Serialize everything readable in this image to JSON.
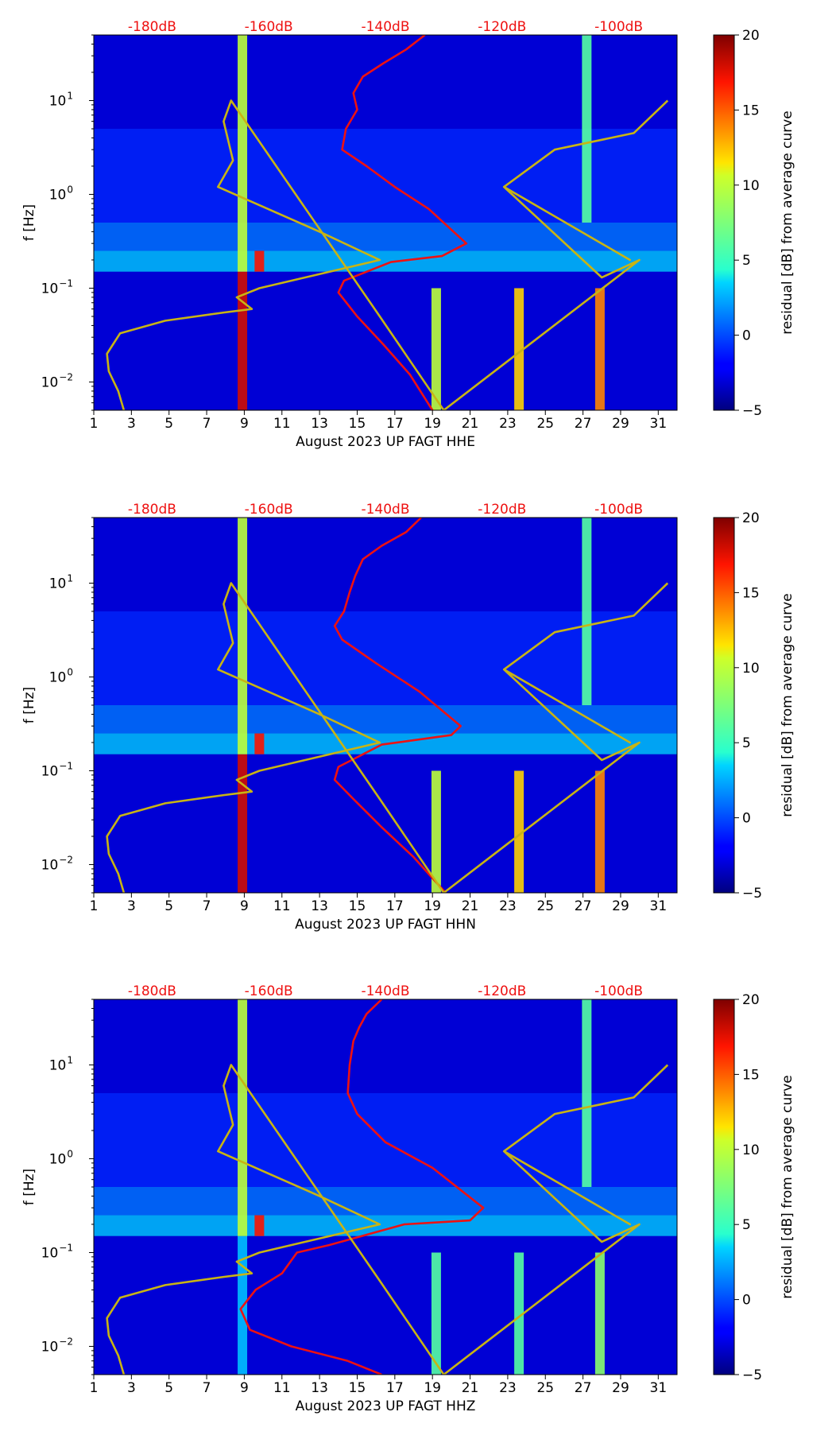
{
  "chart_data": [
    {
      "type": "heatmap",
      "xlabel": "August 2023 UP FAGT  HHE",
      "ylabel": "f [Hz]",
      "component": "HHE",
      "x_ticks": [
        "1",
        "3",
        "5",
        "7",
        "9",
        "11",
        "13",
        "15",
        "17",
        "19",
        "21",
        "23",
        "25",
        "27",
        "29",
        "31"
      ],
      "xlim": [
        1,
        32
      ],
      "y_ticks": [
        {
          "value": 0.01,
          "base": "10",
          "exp": "−2"
        },
        {
          "value": 0.1,
          "base": "10",
          "exp": "−1"
        },
        {
          "value": 1,
          "base": "10",
          "exp": "0"
        },
        {
          "value": 10,
          "base": "10",
          "exp": "1"
        }
      ],
      "ylim": [
        0.005,
        50
      ],
      "top_db_ticks": [
        {
          "label": "-180dB",
          "day": 4.1
        },
        {
          "label": "-160dB",
          "day": 10.3
        },
        {
          "label": "-140dB",
          "day": 16.5
        },
        {
          "label": "-120dB",
          "day": 22.7
        },
        {
          "label": "-100dB",
          "day": 28.9
        }
      ],
      "colorbar": {
        "label": "residual [dB] from average curve",
        "min": -5,
        "max": 20,
        "ticks": [
          "−5",
          "0",
          "5",
          "10",
          "15",
          "20"
        ]
      },
      "bands": [
        {
          "f_low": 0.005,
          "f_high": 0.15,
          "level": -3
        },
        {
          "f_low": 0.15,
          "f_high": 0.25,
          "level": 3
        },
        {
          "f_low": 0.25,
          "f_high": 0.5,
          "level": 1
        },
        {
          "f_low": 0.5,
          "f_high": 5,
          "level": -1
        },
        {
          "f_low": 5,
          "f_high": 50,
          "level": -3
        }
      ],
      "events": [
        {
          "day": 8.9,
          "f_low": 0.005,
          "f_high": 0.15,
          "level": 18
        },
        {
          "day": 8.9,
          "f_low": 0.15,
          "f_high": 50,
          "level": 10
        },
        {
          "day": 9.8,
          "f_low": 0.15,
          "f_high": 0.25,
          "level": 17
        },
        {
          "day": 19.2,
          "f_low": 0.005,
          "f_high": 0.1,
          "level": 10
        },
        {
          "day": 23.6,
          "f_low": 0.005,
          "f_high": 0.1,
          "level": 12
        },
        {
          "day": 27.9,
          "f_low": 0.005,
          "f_high": 0.1,
          "level": 14
        },
        {
          "day": 27.2,
          "f_low": 0.5,
          "f_high": 50,
          "level": 6
        }
      ],
      "series": [
        {
          "name": "mean PSD",
          "color": "#ee1111",
          "x": [
            18.6,
            17.6,
            16.4,
            15.3,
            14.8,
            15.0,
            14.4,
            14.2,
            15.5,
            17.0,
            18.8,
            20.8,
            19.5,
            16.8,
            14.3,
            14.0,
            15.0,
            16.4,
            17.8,
            19.0
          ],
          "y": [
            50,
            35,
            25,
            18,
            12,
            8,
            5,
            3,
            2,
            1.2,
            0.7,
            0.3,
            0.22,
            0.19,
            0.12,
            0.09,
            0.05,
            0.025,
            0.012,
            0.005
          ]
        },
        {
          "name": "noise model",
          "color": "#c8b414",
          "x": [
            2.6,
            2.3,
            1.8,
            1.7,
            2.4,
            4.8,
            7.9,
            9.4,
            8.6,
            9.8,
            16.2,
            13.0,
            7.6,
            8.4,
            7.9,
            8.3,
            16.2,
            19.6,
            30.0,
            28.0,
            22.8,
            29.5,
            22.8,
            25.5,
            29.7,
            31.5
          ],
          "y": [
            0.005,
            0.008,
            0.013,
            0.02,
            0.033,
            0.045,
            0.055,
            0.06,
            0.08,
            0.1,
            0.2,
            0.4,
            1.2,
            2.3,
            6,
            10,
            0.05,
            0.005,
            0.2,
            0.13,
            1.2,
            0.2,
            1.2,
            3,
            4.5,
            10
          ]
        }
      ]
    },
    {
      "type": "heatmap",
      "xlabel": "August 2023 UP FAGT  HHN",
      "ylabel": "f [Hz]",
      "component": "HHN",
      "x_ticks": [
        "1",
        "3",
        "5",
        "7",
        "9",
        "11",
        "13",
        "15",
        "17",
        "19",
        "21",
        "23",
        "25",
        "27",
        "29",
        "31"
      ],
      "xlim": [
        1,
        32
      ],
      "y_ticks": [
        {
          "value": 0.01,
          "base": "10",
          "exp": "−2"
        },
        {
          "value": 0.1,
          "base": "10",
          "exp": "−1"
        },
        {
          "value": 1,
          "base": "10",
          "exp": "0"
        },
        {
          "value": 10,
          "base": "10",
          "exp": "1"
        }
      ],
      "ylim": [
        0.005,
        50
      ],
      "top_db_ticks": [
        {
          "label": "-180dB",
          "day": 4.1
        },
        {
          "label": "-160dB",
          "day": 10.3
        },
        {
          "label": "-140dB",
          "day": 16.5
        },
        {
          "label": "-120dB",
          "day": 22.7
        },
        {
          "label": "-100dB",
          "day": 28.9
        }
      ],
      "colorbar": {
        "label": "residual [dB] from average curve",
        "min": -5,
        "max": 20,
        "ticks": [
          "−5",
          "0",
          "5",
          "10",
          "15",
          "20"
        ]
      },
      "bands": [
        {
          "f_low": 0.005,
          "f_high": 0.15,
          "level": -3
        },
        {
          "f_low": 0.15,
          "f_high": 0.25,
          "level": 3
        },
        {
          "f_low": 0.25,
          "f_high": 0.5,
          "level": 1
        },
        {
          "f_low": 0.5,
          "f_high": 5,
          "level": -1
        },
        {
          "f_low": 5,
          "f_high": 50,
          "level": -3
        }
      ],
      "events": [
        {
          "day": 8.9,
          "f_low": 0.005,
          "f_high": 0.15,
          "level": 18
        },
        {
          "day": 8.9,
          "f_low": 0.15,
          "f_high": 50,
          "level": 10
        },
        {
          "day": 9.8,
          "f_low": 0.15,
          "f_high": 0.25,
          "level": 17
        },
        {
          "day": 19.2,
          "f_low": 0.005,
          "f_high": 0.1,
          "level": 10
        },
        {
          "day": 23.6,
          "f_low": 0.005,
          "f_high": 0.1,
          "level": 12
        },
        {
          "day": 27.9,
          "f_low": 0.005,
          "f_high": 0.1,
          "level": 14
        },
        {
          "day": 27.2,
          "f_low": 0.5,
          "f_high": 50,
          "level": 6
        }
      ],
      "series": [
        {
          "name": "mean PSD",
          "color": "#ee1111",
          "x": [
            18.4,
            17.6,
            16.3,
            15.3,
            14.9,
            14.6,
            14.3,
            13.8,
            14.2,
            16.0,
            18.3,
            20.5,
            20.0,
            16.3,
            14.0,
            13.8,
            14.8,
            16.3,
            18.0,
            19.7
          ],
          "y": [
            50,
            35,
            25,
            18,
            12,
            8,
            5,
            3.5,
            2.5,
            1.4,
            0.7,
            0.3,
            0.24,
            0.19,
            0.11,
            0.08,
            0.05,
            0.025,
            0.012,
            0.005
          ]
        },
        {
          "name": "noise model",
          "color": "#c8b414",
          "x": [
            2.6,
            2.3,
            1.8,
            1.7,
            2.4,
            4.8,
            7.9,
            9.4,
            8.6,
            9.8,
            16.2,
            13.0,
            7.6,
            8.4,
            7.9,
            8.3,
            16.2,
            19.6,
            30.0,
            28.0,
            22.8,
            29.5,
            22.8,
            25.5,
            29.7,
            31.5
          ],
          "y": [
            0.005,
            0.008,
            0.013,
            0.02,
            0.033,
            0.045,
            0.055,
            0.06,
            0.08,
            0.1,
            0.2,
            0.4,
            1.2,
            2.3,
            6,
            10,
            0.05,
            0.005,
            0.2,
            0.13,
            1.2,
            0.2,
            1.2,
            3,
            4.5,
            10
          ]
        }
      ]
    },
    {
      "type": "heatmap",
      "xlabel": "August 2023 UP FAGT  HHZ",
      "ylabel": "f [Hz]",
      "component": "HHZ",
      "x_ticks": [
        "1",
        "3",
        "5",
        "7",
        "9",
        "11",
        "13",
        "15",
        "17",
        "19",
        "21",
        "23",
        "25",
        "27",
        "29",
        "31"
      ],
      "xlim": [
        1,
        32
      ],
      "y_ticks": [
        {
          "value": 0.01,
          "base": "10",
          "exp": "−2"
        },
        {
          "value": 0.1,
          "base": "10",
          "exp": "−1"
        },
        {
          "value": 1,
          "base": "10",
          "exp": "0"
        },
        {
          "value": 10,
          "base": "10",
          "exp": "1"
        }
      ],
      "ylim": [
        0.005,
        50
      ],
      "top_db_ticks": [
        {
          "label": "-180dB",
          "day": 4.1
        },
        {
          "label": "-160dB",
          "day": 10.3
        },
        {
          "label": "-140dB",
          "day": 16.5
        },
        {
          "label": "-120dB",
          "day": 22.7
        },
        {
          "label": "-100dB",
          "day": 28.9
        }
      ],
      "colorbar": {
        "label": "residual [dB] from average curve",
        "min": -5,
        "max": 20,
        "ticks": [
          "−5",
          "0",
          "5",
          "10",
          "15",
          "20"
        ]
      },
      "bands": [
        {
          "f_low": 0.005,
          "f_high": 0.15,
          "level": -3
        },
        {
          "f_low": 0.15,
          "f_high": 0.25,
          "level": 3
        },
        {
          "f_low": 0.25,
          "f_high": 0.5,
          "level": 1
        },
        {
          "f_low": 0.5,
          "f_high": 5,
          "level": -1
        },
        {
          "f_low": 5,
          "f_high": 50,
          "level": -3
        }
      ],
      "events": [
        {
          "day": 8.9,
          "f_low": 0.005,
          "f_high": 0.15,
          "level": 3
        },
        {
          "day": 8.9,
          "f_low": 0.15,
          "f_high": 50,
          "level": 10
        },
        {
          "day": 9.8,
          "f_low": 0.15,
          "f_high": 0.25,
          "level": 17
        },
        {
          "day": 19.2,
          "f_low": 0.005,
          "f_high": 0.1,
          "level": 6
        },
        {
          "day": 23.6,
          "f_low": 0.005,
          "f_high": 0.1,
          "level": 6
        },
        {
          "day": 27.9,
          "f_low": 0.005,
          "f_high": 0.1,
          "level": 8
        },
        {
          "day": 27.2,
          "f_low": 0.5,
          "f_high": 50,
          "level": 6
        }
      ],
      "series": [
        {
          "name": "mean PSD",
          "color": "#ee1111",
          "x": [
            16.3,
            15.5,
            15.1,
            14.8,
            14.6,
            14.5,
            15.0,
            16.5,
            19.0,
            21.7,
            21.0,
            17.5,
            13.5,
            11.8,
            11.0,
            9.6,
            8.8,
            9.3,
            11.5,
            14.5,
            16.3
          ],
          "y": [
            50,
            35,
            25,
            18,
            10,
            5,
            3,
            1.5,
            0.8,
            0.3,
            0.22,
            0.2,
            0.12,
            0.1,
            0.06,
            0.04,
            0.025,
            0.015,
            0.01,
            0.007,
            0.005
          ]
        },
        {
          "name": "noise model",
          "color": "#c8b414",
          "x": [
            2.6,
            2.3,
            1.8,
            1.7,
            2.4,
            4.8,
            7.9,
            9.4,
            8.6,
            9.8,
            16.2,
            13.0,
            7.6,
            8.4,
            7.9,
            8.3,
            16.2,
            19.6,
            30.0,
            28.0,
            22.8,
            29.5,
            22.8,
            25.5,
            29.7,
            31.5
          ],
          "y": [
            0.005,
            0.008,
            0.013,
            0.02,
            0.033,
            0.045,
            0.055,
            0.06,
            0.08,
            0.1,
            0.2,
            0.4,
            1.2,
            2.3,
            6,
            10,
            0.05,
            0.005,
            0.2,
            0.13,
            1.2,
            0.2,
            1.2,
            3,
            4.5,
            10
          ]
        }
      ]
    }
  ]
}
